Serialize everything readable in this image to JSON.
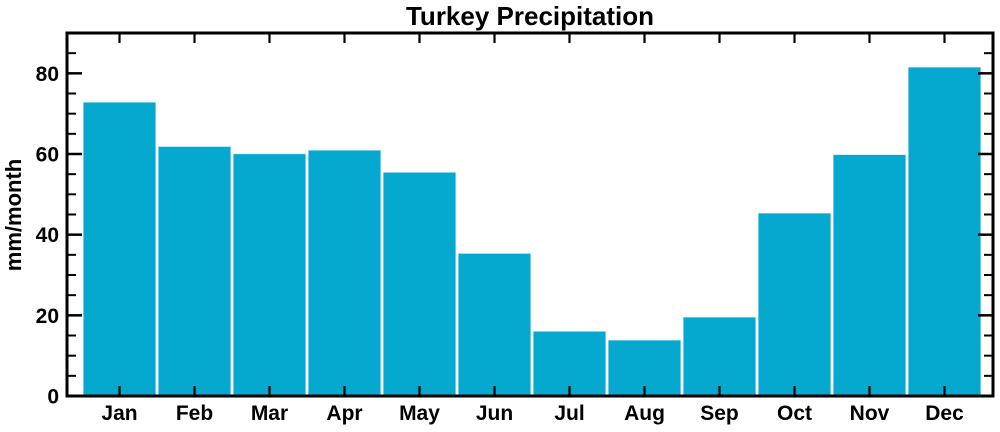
{
  "chart_data": {
    "type": "bar",
    "title": "Turkey Precipitation",
    "ylabel": "mm/month",
    "xlabel": "",
    "categories": [
      "Jan",
      "Feb",
      "Mar",
      "Apr",
      "May",
      "Jun",
      "Jul",
      "Aug",
      "Sep",
      "Oct",
      "Nov",
      "Dec"
    ],
    "values": [
      72.9,
      61.9,
      60.1,
      61.0,
      55.5,
      35.4,
      16.1,
      13.9,
      19.6,
      45.4,
      59.9,
      81.6
    ],
    "ylim": [
      0,
      90
    ],
    "yticks": [
      0,
      20,
      40,
      60,
      80
    ],
    "ytick_labels": [
      "0",
      "20",
      "40",
      "60",
      "80"
    ],
    "minor_tick_step": 5,
    "grid": false,
    "legend": null,
    "tick_style": "inward-mirrored-four-sides",
    "colors": {
      "bar_fill": "#05a8ce",
      "bar_edge": "#ffffff",
      "axis": "#000000",
      "text": "#000000",
      "background": "#ffffff"
    }
  }
}
